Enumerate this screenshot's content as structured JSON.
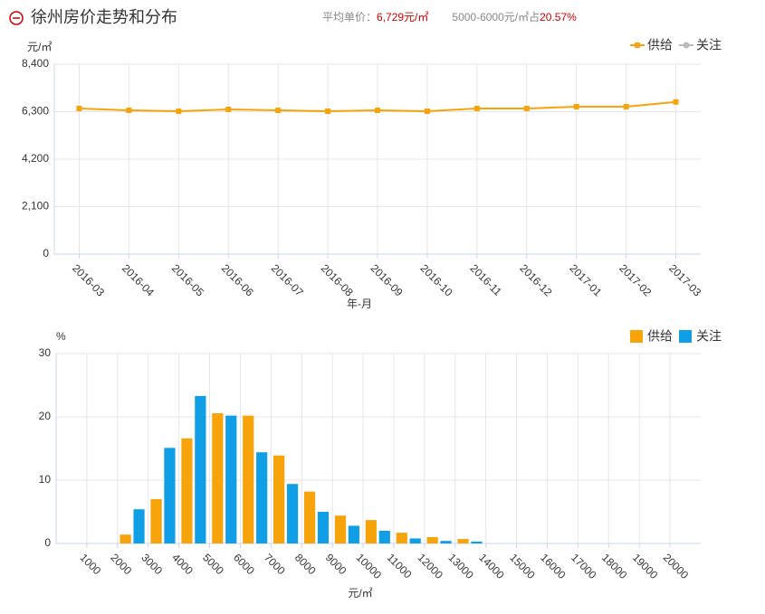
{
  "header": {
    "title": "徐州房价走势和分布",
    "avg_label": "平均单价：",
    "avg_value": "6,729元/㎡",
    "range_label": "5000-6000元/㎡占",
    "range_value": "20.57%"
  },
  "chart_data": [
    {
      "type": "line",
      "y_label": "元/㎡",
      "x_label": "年-月",
      "categories": [
        "2016-03",
        "2016-04",
        "2016-05",
        "2016-06",
        "2016-07",
        "2016-08",
        "2016-09",
        "2016-10",
        "2016-11",
        "2016-12",
        "2017-01",
        "2017-02",
        "2017-03"
      ],
      "series": [
        {
          "name": "供给",
          "color": "#f7a30c",
          "values": [
            6440,
            6360,
            6320,
            6400,
            6360,
            6320,
            6360,
            6320,
            6440,
            6440,
            6520,
            6520,
            6729
          ]
        },
        {
          "name": "关注",
          "color": "#bbbbbb",
          "values": [
            null,
            null,
            null,
            null,
            null,
            null,
            null,
            null,
            null,
            null,
            null,
            null,
            null
          ]
        }
      ],
      "ylim": [
        0,
        8400
      ],
      "yticks": [
        0,
        {
          "value": 2100,
          "label": "2,100"
        },
        {
          "value": 4200,
          "label": "4,200"
        },
        {
          "value": 6300,
          "label": "6,300"
        },
        {
          "value": 8400,
          "label": "8,400"
        }
      ],
      "grid": true,
      "legend": "top-right"
    },
    {
      "type": "bar",
      "y_label": "%",
      "x_label": "元/㎡",
      "categories": [
        "1000",
        "2000",
        "3000",
        "4000",
        "5000",
        "6000",
        "7000",
        "8000",
        "9000",
        "10000",
        "11000",
        "12000",
        "13000",
        "14000",
        "15000",
        "16000",
        "17000",
        "18000",
        "19000",
        "20000"
      ],
      "series": [
        {
          "name": "供给",
          "color": "#f7a30c",
          "values": [
            0,
            1.4,
            7.0,
            16.6,
            20.57,
            20.2,
            13.9,
            8.2,
            4.4,
            3.7,
            1.7,
            1.0,
            0.7,
            0,
            0,
            0,
            0,
            0,
            0,
            0
          ]
        },
        {
          "name": "关注",
          "color": "#109fe6",
          "values": [
            0,
            5.4,
            15.1,
            23.3,
            20.2,
            14.4,
            9.4,
            5.0,
            2.8,
            2.0,
            0.8,
            0.4,
            0.3,
            0,
            0,
            0,
            0,
            0,
            0,
            0
          ]
        }
      ],
      "ylim": [
        0,
        30
      ],
      "yticks": [
        0,
        10,
        20,
        30
      ],
      "grid": true,
      "legend": "top-right"
    }
  ]
}
